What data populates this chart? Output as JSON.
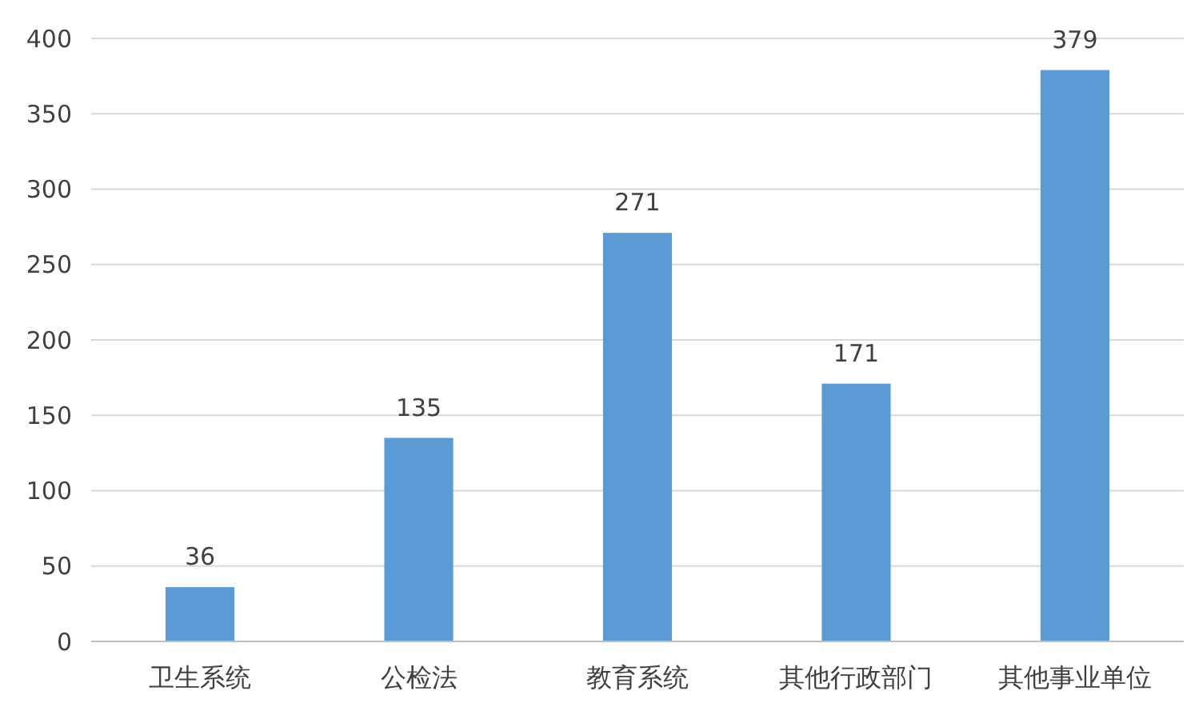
{
  "chart_data": {
    "type": "bar",
    "categories": [
      "卫生系统",
      "公检法",
      "教育系统",
      "其他行政部门",
      "其他事业单位"
    ],
    "values": [
      36,
      135,
      271,
      171,
      379
    ],
    "color": "#5b9bd5",
    "ylim": [
      0,
      400
    ],
    "yticks": [
      0,
      50,
      100,
      150,
      200,
      250,
      300,
      350,
      400
    ],
    "grid": "y",
    "data_labels": true
  }
}
